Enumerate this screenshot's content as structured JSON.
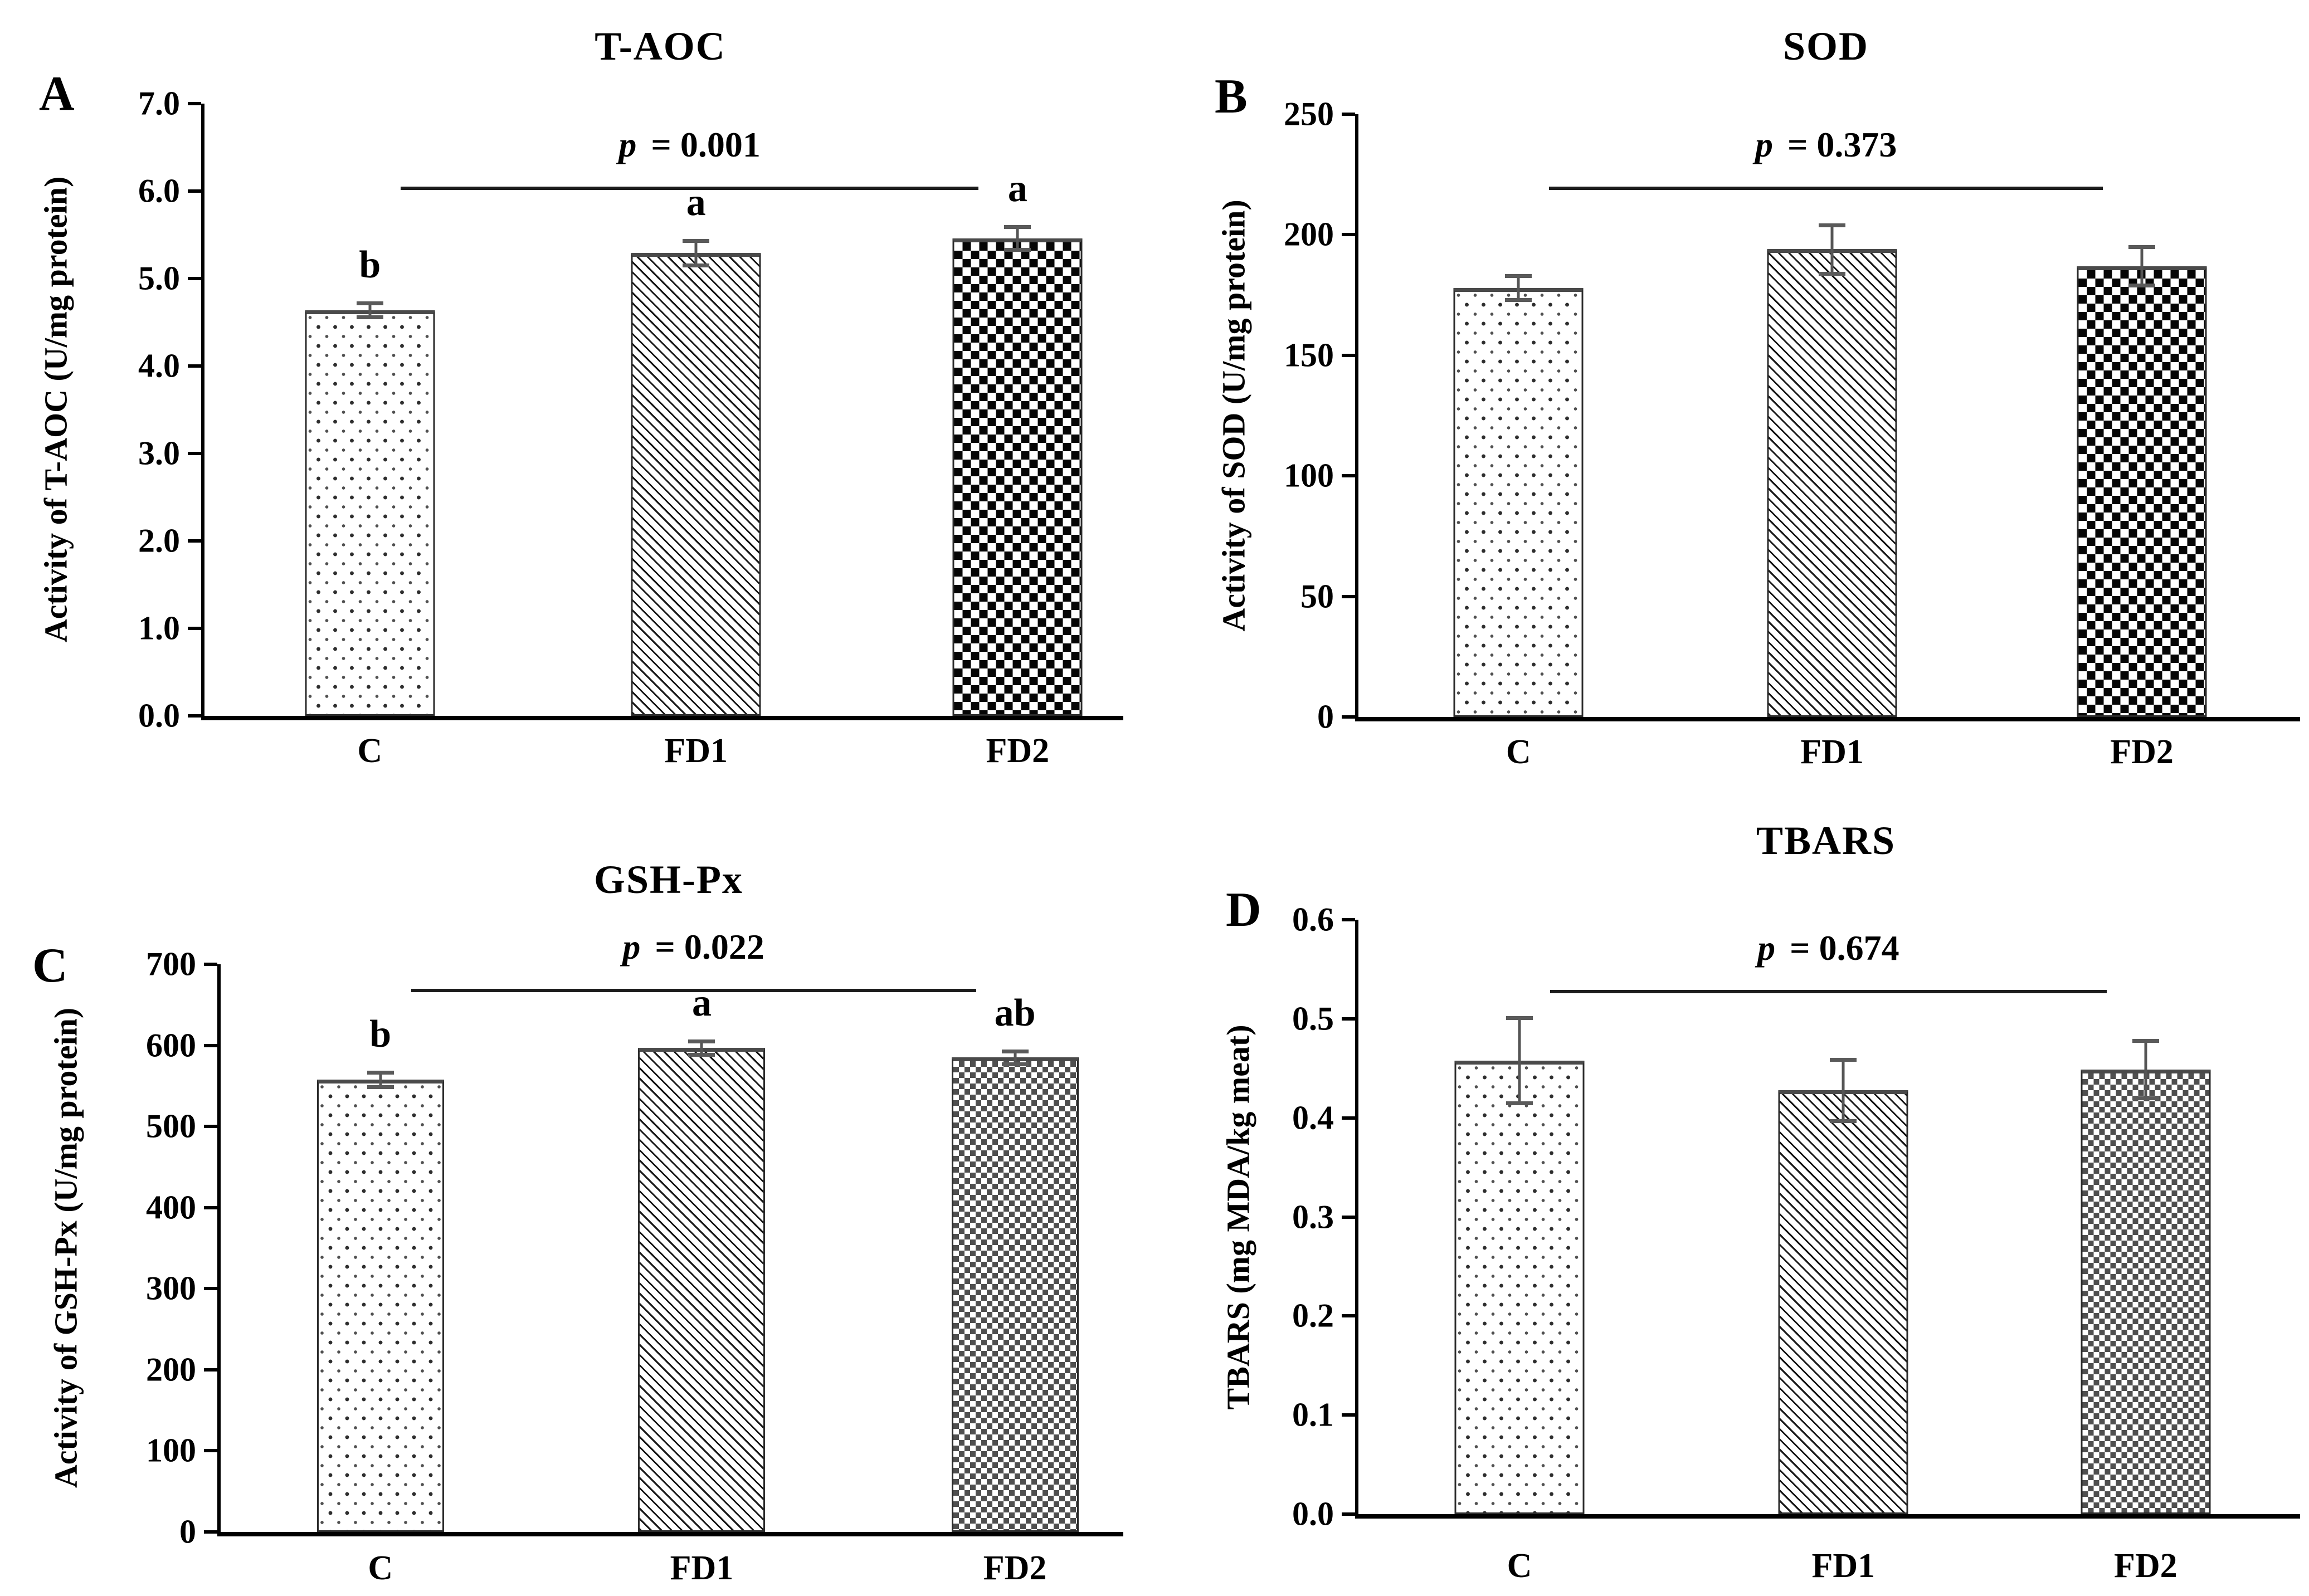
{
  "figure": {
    "background": "#ffffff",
    "ink_color": "#000000",
    "error_bar_color": "#555555",
    "group_labels": [
      "C",
      "FD1",
      "FD2"
    ]
  },
  "chart_data": [
    {
      "panel_letter": "A",
      "type": "bar",
      "title": "T-AOC",
      "ylabel": "Activity of T-AOC (U/mg protein)",
      "categories": [
        "C",
        "FD1",
        "FD2"
      ],
      "values": [
        4.64,
        5.29,
        5.46
      ],
      "errors": [
        0.08,
        0.14,
        0.13
      ],
      "sig_letters": [
        "b",
        "a",
        "a"
      ],
      "p_symbol": "p",
      "p_text": "= 0.001",
      "bracket_y": 6.05,
      "ylim": [
        0,
        7
      ],
      "ytick_labels": [
        "0.0",
        "1.0",
        "2.0",
        "3.0",
        "4.0",
        "5.0",
        "6.0",
        "7.0"
      ],
      "grid": "off",
      "bar_patterns": [
        "dotted",
        "diagonal-hatch",
        "checkerboard-bold"
      ]
    },
    {
      "panel_letter": "B",
      "type": "bar",
      "title": "SOD",
      "ylabel": "Activity of SOD (U/mg protein)",
      "categories": [
        "C",
        "FD1",
        "FD2"
      ],
      "values": [
        178,
        194,
        187
      ],
      "errors": [
        5,
        10,
        8
      ],
      "sig_letters": null,
      "p_symbol": "p",
      "p_text": "= 0.373",
      "bracket_y": 220,
      "ylim": [
        0,
        250
      ],
      "ytick_labels": [
        "0",
        "50",
        "100",
        "150",
        "200",
        "250"
      ],
      "grid": "off",
      "bar_patterns": [
        "dotted",
        "diagonal-hatch",
        "checkerboard-bold"
      ]
    },
    {
      "panel_letter": "C",
      "type": "bar",
      "title": "GSH-Px",
      "ylabel": "Activity of GSH-Px (U/mg protein)",
      "categories": [
        "C",
        "FD1",
        "FD2"
      ],
      "values": [
        558,
        597,
        585
      ],
      "errors": [
        9,
        8,
        8
      ],
      "sig_letters": [
        "b",
        "a",
        "ab"
      ],
      "p_symbol": "p",
      "p_text": "= 0.022",
      "bracket_y": 670,
      "ylim": [
        0,
        700
      ],
      "ytick_labels": [
        "0",
        "100",
        "200",
        "300",
        "400",
        "500",
        "600",
        "700"
      ],
      "grid": "off",
      "bar_patterns": [
        "dotted",
        "diagonal-hatch",
        "checkerboard-fine"
      ]
    },
    {
      "panel_letter": "D",
      "type": "bar",
      "title": "TBARS",
      "ylabel": "TBARS (mg MDA/kg meat)",
      "categories": [
        "C",
        "FD1",
        "FD2"
      ],
      "values": [
        0.458,
        0.428,
        0.449
      ],
      "errors": [
        0.043,
        0.031,
        0.029
      ],
      "sig_letters": null,
      "p_symbol": "p",
      "p_text": "= 0.674",
      "bracket_y": 0.529,
      "ylim": [
        0,
        0.6
      ],
      "ytick_labels": [
        "0.0",
        "0.1",
        "0.2",
        "0.3",
        "0.4",
        "0.5",
        "0.6"
      ],
      "grid": "off",
      "bar_patterns": [
        "dotted",
        "diagonal-hatch",
        "checkerboard-fine"
      ]
    }
  ]
}
